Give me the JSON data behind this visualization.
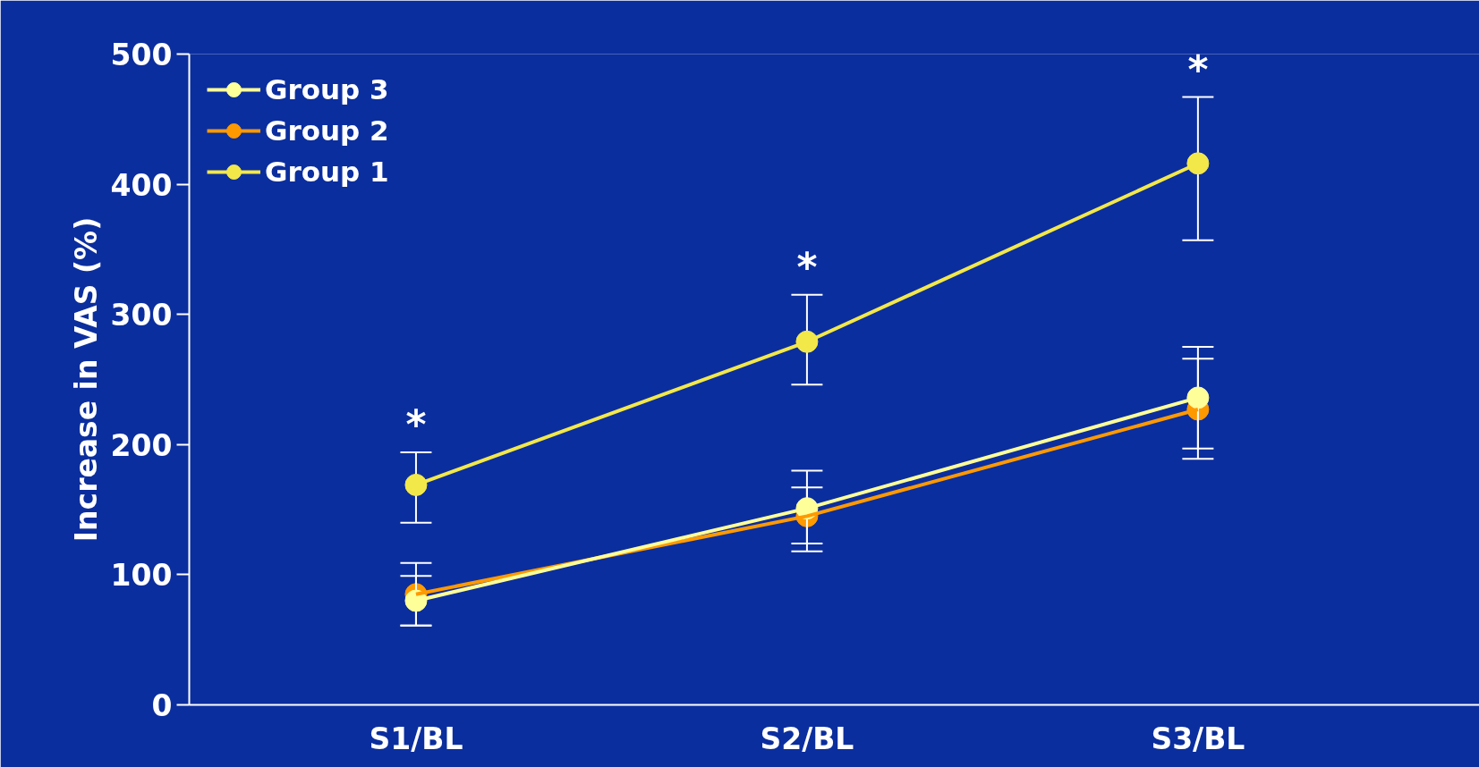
{
  "chart_data": {
    "type": "line",
    "ylabel": "Increase in VAS (%)",
    "categories": [
      "S1/BL",
      "S2/BL",
      "S3/BL"
    ],
    "ylim": [
      0,
      500
    ],
    "yticks": [
      0,
      100,
      200,
      300,
      400,
      500
    ],
    "grid": false,
    "legend": "top left",
    "marker": "circle",
    "line_style": "solid",
    "series": [
      {
        "name": "Group 3",
        "color": "#ffff99",
        "values": [
          80,
          151,
          236
        ],
        "errors": [
          [
            61,
            99
          ],
          [
            124,
            180
          ],
          [
            197,
            275
          ]
        ]
      },
      {
        "name": "Group 2",
        "color": "#ff9900",
        "values": [
          85,
          145,
          227
        ],
        "errors": [
          [
            61,
            109
          ],
          [
            118,
            167
          ],
          [
            189,
            266
          ]
        ]
      },
      {
        "name": "Group 1",
        "color": "#f2e84a",
        "values": [
          169,
          279,
          416
        ],
        "errors": [
          [
            140,
            194
          ],
          [
            246,
            315
          ],
          [
            357,
            467
          ]
        ]
      }
    ],
    "annotations": [
      "*",
      "*",
      "*"
    ]
  }
}
